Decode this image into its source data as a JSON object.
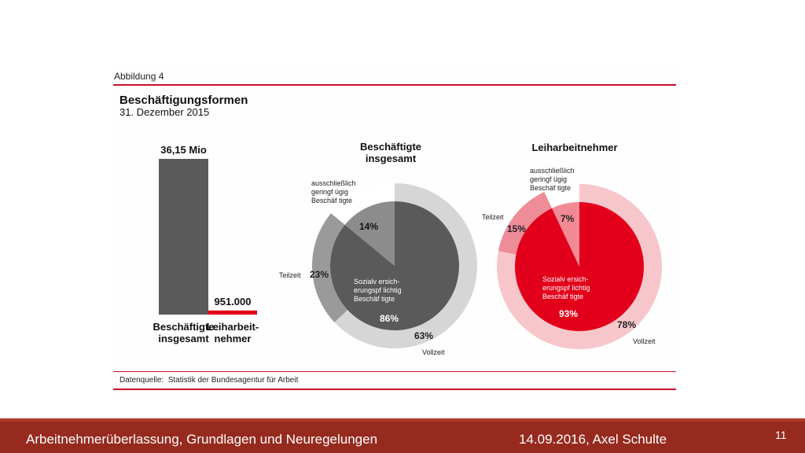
{
  "figure": {
    "label": "Abbildung 4",
    "title": "Beschäftigungsformen",
    "subtitle": "31. Dezember 2015",
    "source": "Datenquelle:  Statistik der Bundesagentur für Arbeit"
  },
  "colors": {
    "accent_red": "#c8102e",
    "dark_gray": "#5a5a5a",
    "footer_bg": "#962a1e"
  },
  "chart_data": [
    {
      "type": "bar",
      "categories": [
        "Beschäftigte insgesamt",
        "Leiharbeit-nehmer"
      ],
      "category_lines": [
        [
          "Beschäftigte",
          "insgesamt"
        ],
        [
          "Leiharbeit-",
          "nehmer"
        ]
      ],
      "values": [
        36150000,
        951000
      ],
      "value_labels": [
        "36,15 Mio",
        "951.000"
      ],
      "colors": [
        "#5a5a5a",
        "#e2001a"
      ],
      "ylim": [
        0,
        36150000
      ]
    },
    {
      "type": "pie",
      "title": "Beschäftigte insgesamt",
      "title_lines": [
        "Beschäftigte",
        "insgesamt"
      ],
      "inner": {
        "slices": [
          {
            "label": "Sozialversicherungspflichtig Beschäftigte",
            "label_lines": [
              "Sozialv ersich-",
              "erungspf lichtig",
              "Beschäf tigte"
            ],
            "value": 86,
            "value_label": "86%"
          },
          {
            "label": "ausschließlich geringfügig Beschäftigte",
            "label_lines": [
              "ausschließlich",
              "geringf ügig",
              "Beschäf tigte"
            ],
            "value": 14,
            "value_label": "14%"
          }
        ]
      },
      "outer": {
        "slices": [
          {
            "label": "Vollzeit",
            "value": 63,
            "value_label": "63%"
          },
          {
            "label": "Teilzeit",
            "value": 23,
            "value_label": "23%"
          },
          {
            "label": "",
            "value": 14,
            "value_label": ""
          }
        ]
      }
    },
    {
      "type": "pie",
      "title": "Leiharbeitnehmer",
      "inner": {
        "slices": [
          {
            "label": "Sozialversicherungspflichtig Beschäftigte",
            "label_lines": [
              "Sozialv ersich-",
              "erungspf lichtig",
              "Beschäf tigte"
            ],
            "value": 93,
            "value_label": "93%"
          },
          {
            "label": "ausschließlich geringfügig Beschäftigte",
            "label_lines": [
              "ausschließlich",
              "geringf ügig",
              "Beschäf tigte"
            ],
            "value": 7,
            "value_label": "7%"
          }
        ]
      },
      "outer": {
        "slices": [
          {
            "label": "Vollzeit",
            "value": 78,
            "value_label": "78%"
          },
          {
            "label": "Teilzeit",
            "value": 15,
            "value_label": "15%"
          },
          {
            "label": "",
            "value": 7,
            "value_label": ""
          }
        ]
      }
    }
  ],
  "footer": {
    "title": "Arbeitnehmerüberlassung, Grundlagen und Neuregelungen",
    "date_author": "14.09.2016, Axel Schulte",
    "page_number": "11"
  }
}
